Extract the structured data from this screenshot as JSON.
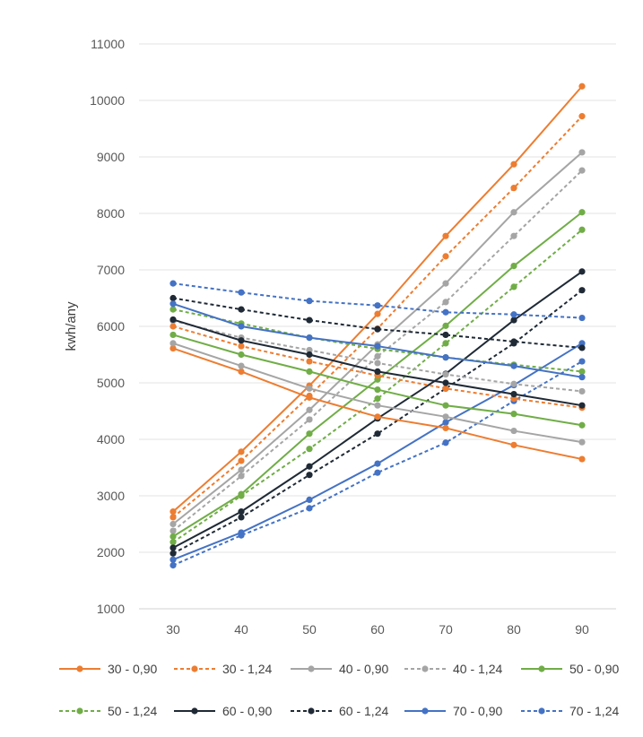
{
  "chart_data": {
    "type": "line",
    "title": "",
    "xlabel": "",
    "ylabel": "kwh/any",
    "ylim": [
      1000,
      11000
    ],
    "yticks": [
      "1000",
      "2000",
      "3000",
      "4000",
      "5000",
      "6000",
      "7000",
      "8000",
      "9000",
      "10000",
      "11000"
    ],
    "categories": [
      "30",
      "40",
      "50",
      "60",
      "70",
      "80",
      "90"
    ],
    "x": [
      30,
      40,
      50,
      60,
      70,
      80,
      90
    ],
    "grid": "horizontal",
    "legend_position": "bottom",
    "series": [
      {
        "name": "30 - 0,90",
        "color": "#ED7D31",
        "dash": "solid",
        "group": "increasing",
        "values": [
          2720,
          3780,
          4950,
          6220,
          7600,
          8870,
          10250
        ]
      },
      {
        "name": "30 - 1,24",
        "color": "#ED7D31",
        "dash": "dashed",
        "group": "increasing",
        "values": [
          2620,
          3620,
          4770,
          5960,
          7240,
          8450,
          9720
        ]
      },
      {
        "name": "40 - 0,90",
        "color": "#A5A5A5",
        "dash": "solid",
        "group": "increasing",
        "values": [
          2500,
          3460,
          4520,
          5680,
          6760,
          8020,
          9080
        ]
      },
      {
        "name": "40 - 1,24",
        "color": "#A5A5A5",
        "dash": "dashed",
        "group": "increasing",
        "values": [
          2380,
          3350,
          4350,
          5470,
          6430,
          7600,
          8760
        ]
      },
      {
        "name": "50 - 0,90",
        "color": "#70AD47",
        "dash": "solid",
        "group": "increasing",
        "values": [
          2280,
          3030,
          4100,
          5060,
          6010,
          7070,
          8020
        ]
      },
      {
        "name": "50 - 1,24",
        "color": "#70AD47",
        "dash": "dashed",
        "group": "increasing",
        "values": [
          2180,
          3000,
          3830,
          4720,
          5700,
          6700,
          7710
        ]
      },
      {
        "name": "60 - 0,90",
        "color": "#1F2A36",
        "dash": "solid",
        "group": "increasing",
        "values": [
          2080,
          2720,
          3520,
          4370,
          5160,
          6110,
          6970
        ]
      },
      {
        "name": "60 - 1,24",
        "color": "#1F2A36",
        "dash": "dashed",
        "group": "increasing",
        "values": [
          1980,
          2620,
          3370,
          4100,
          4900,
          5700,
          6640
        ]
      },
      {
        "name": "70 - 0,90",
        "color": "#4472C4",
        "dash": "solid",
        "group": "increasing",
        "values": [
          1870,
          2350,
          2930,
          3570,
          4300,
          4960,
          5700
        ]
      },
      {
        "name": "70 - 1,24",
        "color": "#4472C4",
        "dash": "dashed",
        "group": "increasing",
        "values": [
          1770,
          2300,
          2780,
          3410,
          3940,
          4680,
          5380
        ]
      },
      {
        "name": "30 - 0,90",
        "color": "#ED7D31",
        "dash": "solid",
        "group": "decreasing",
        "values": [
          5610,
          5200,
          4740,
          4400,
          4200,
          3900,
          3650
        ]
      },
      {
        "name": "30 - 1,24",
        "color": "#ED7D31",
        "dash": "dashed",
        "group": "decreasing",
        "values": [
          6000,
          5650,
          5380,
          5130,
          4900,
          4720,
          4560
        ]
      },
      {
        "name": "40 - 0,90",
        "color": "#A5A5A5",
        "dash": "solid",
        "group": "decreasing",
        "values": [
          5700,
          5300,
          4900,
          4600,
          4400,
          4150,
          3950
        ]
      },
      {
        "name": "40 - 1,24",
        "color": "#A5A5A5",
        "dash": "dashed",
        "group": "decreasing",
        "values": [
          6100,
          5800,
          5580,
          5350,
          5150,
          4980,
          4850
        ]
      },
      {
        "name": "50 - 0,90",
        "color": "#70AD47",
        "dash": "solid",
        "group": "decreasing",
        "values": [
          5850,
          5500,
          5200,
          4880,
          4600,
          4450,
          4250
        ]
      },
      {
        "name": "50 - 1,24",
        "color": "#70AD47",
        "dash": "dashed",
        "group": "decreasing",
        "values": [
          6300,
          6050,
          5800,
          5600,
          5450,
          5320,
          5200
        ]
      },
      {
        "name": "60 - 0,90",
        "color": "#1F2A36",
        "dash": "solid",
        "group": "decreasing",
        "values": [
          6120,
          5750,
          5500,
          5200,
          5000,
          4800,
          4600
        ]
      },
      {
        "name": "60 - 1,24",
        "color": "#1F2A36",
        "dash": "dashed",
        "group": "decreasing",
        "values": [
          6500,
          6300,
          6110,
          5950,
          5850,
          5730,
          5620
        ]
      },
      {
        "name": "70 - 0,90",
        "color": "#4472C4",
        "dash": "solid",
        "group": "decreasing",
        "values": [
          6400,
          6000,
          5800,
          5650,
          5450,
          5300,
          5100
        ]
      },
      {
        "name": "70 - 1,24",
        "color": "#4472C4",
        "dash": "dashed",
        "group": "decreasing",
        "values": [
          6760,
          6600,
          6450,
          6370,
          6250,
          6210,
          6150
        ]
      }
    ],
    "legend": [
      {
        "label": "30 - 0,90",
        "color": "#ED7D31",
        "dash": "solid"
      },
      {
        "label": "30 - 1,24",
        "color": "#ED7D31",
        "dash": "dashed"
      },
      {
        "label": "40 - 0,90",
        "color": "#A5A5A5",
        "dash": "solid"
      },
      {
        "label": "40 - 1,24",
        "color": "#A5A5A5",
        "dash": "dashed"
      },
      {
        "label": "50 - 0,90",
        "color": "#70AD47",
        "dash": "solid"
      },
      {
        "label": "50 - 1,24",
        "color": "#70AD47",
        "dash": "dashed"
      },
      {
        "label": "60 - 0,90",
        "color": "#1F2A36",
        "dash": "solid"
      },
      {
        "label": "60 - 1,24",
        "color": "#1F2A36",
        "dash": "dashed"
      },
      {
        "label": "70 - 0,90",
        "color": "#4472C4",
        "dash": "solid"
      },
      {
        "label": "70 - 1,24",
        "color": "#4472C4",
        "dash": "dashed"
      }
    ]
  }
}
